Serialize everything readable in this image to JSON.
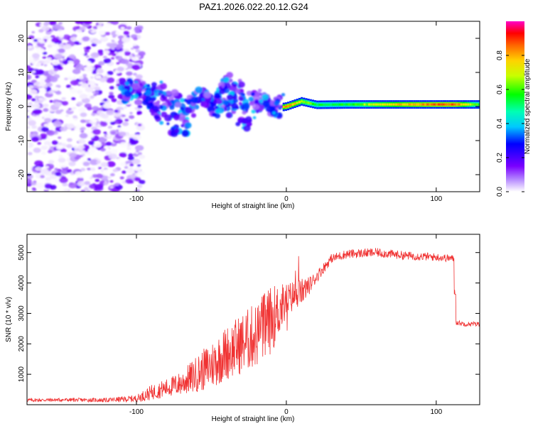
{
  "title": "PAZ1.2026.022.20.12.G24",
  "chart_data": [
    {
      "type": "heatmap",
      "xlabel": "Height of straight line (km)",
      "ylabel": "Frequency (Hz)",
      "xlim": [
        -173,
        129
      ],
      "ylim": [
        -25,
        25
      ],
      "xticks": [
        -100,
        0,
        100
      ],
      "yticks": [
        -20,
        -10,
        0,
        10,
        20
      ],
      "xtick_labels": [
        "-100",
        "0",
        "100"
      ],
      "ytick_labels": [
        "-20",
        "-10",
        "0",
        "10",
        "20"
      ],
      "colorbar": {
        "label": "Normalized spectral amplitude",
        "range": [
          0,
          1
        ],
        "ticks": [
          0.0,
          0.2,
          0.4,
          0.6,
          0.8
        ],
        "tick_labels": [
          "0.0",
          "0.2",
          "0.4",
          "0.6",
          "0.8"
        ]
      },
      "ridge": [
        {
          "x": -110,
          "f": 5.5,
          "a": 0.22
        },
        {
          "x": -98,
          "f": 5.0,
          "a": 0.3
        },
        {
          "x": -88,
          "f": 2.0,
          "a": 0.3
        },
        {
          "x": -78,
          "f": 0.0,
          "a": 0.35
        },
        {
          "x": -68,
          "f": -4.0,
          "a": 0.3
        },
        {
          "x": -58,
          "f": 3.0,
          "a": 0.3
        },
        {
          "x": -48,
          "f": 0.0,
          "a": 0.3
        },
        {
          "x": -38,
          "f": 4.0,
          "a": 0.3
        },
        {
          "x": -28,
          "f": -1.0,
          "a": 0.3
        },
        {
          "x": -18,
          "f": 2.0,
          "a": 0.35
        },
        {
          "x": -8,
          "f": -0.5,
          "a": 0.5
        },
        {
          "x": 0,
          "f": 0.0,
          "a": 0.85
        },
        {
          "x": 10,
          "f": 1.5,
          "a": 0.7
        },
        {
          "x": 20,
          "f": 0.5,
          "a": 0.55
        },
        {
          "x": 40,
          "f": 0.6,
          "a": 0.55
        },
        {
          "x": 60,
          "f": 0.6,
          "a": 0.7
        },
        {
          "x": 80,
          "f": 0.6,
          "a": 0.8
        },
        {
          "x": 100,
          "f": 0.6,
          "a": 0.85
        },
        {
          "x": 113,
          "f": 0.6,
          "a": 0.85
        },
        {
          "x": 129,
          "f": 0.6,
          "a": 0.55
        }
      ]
    },
    {
      "type": "line",
      "xlabel": "Height of straight line (km)",
      "ylabel": "SNR (10 * v/v)",
      "xlim": [
        -173,
        129
      ],
      "ylim": [
        0,
        5600
      ],
      "xticks": [
        -100,
        0,
        100
      ],
      "yticks": [
        1000,
        2000,
        3000,
        4000,
        5000
      ],
      "xtick_labels": [
        "-100",
        "0",
        "100"
      ],
      "ytick_labels": [
        "1000",
        "2000",
        "3000",
        "4000",
        "5000"
      ],
      "series": [
        {
          "name": "SNR",
          "color": "#f03232",
          "x": [
            -173,
            -150,
            -120,
            -100,
            -90,
            -80,
            -70,
            -60,
            -50,
            -40,
            -30,
            -20,
            -15,
            -10,
            -5,
            0,
            5,
            10,
            15,
            20,
            25,
            30,
            40,
            60,
            80,
            100,
            112,
            113,
            120,
            129
          ],
          "y": [
            150,
            160,
            150,
            200,
            400,
            550,
            700,
            1000,
            1300,
            1700,
            2000,
            2300,
            2500,
            2800,
            3100,
            3400,
            3600,
            3700,
            3900,
            4200,
            4500,
            4800,
            4950,
            5000,
            4900,
            4850,
            4800,
            2700,
            2650,
            2650
          ],
          "noise_amplitude": [
            60,
            60,
            70,
            120,
            250,
            300,
            400,
            600,
            800,
            900,
            1000,
            1100,
            1200,
            1100,
            900,
            600,
            500,
            450,
            300,
            200,
            180,
            150,
            150,
            150,
            140,
            130,
            120,
            80,
            80,
            80
          ]
        }
      ]
    }
  ]
}
